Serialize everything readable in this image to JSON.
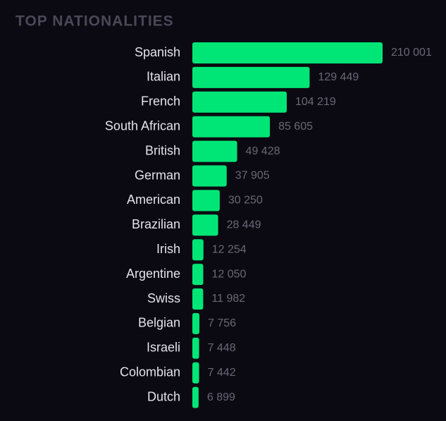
{
  "chart_data": {
    "type": "bar",
    "orientation": "horizontal",
    "title": "TOP NATIONALITIES",
    "categories": [
      "Spanish",
      "Italian",
      "French",
      "South African",
      "British",
      "German",
      "American",
      "Brazilian",
      "Irish",
      "Argentine",
      "Swiss",
      "Belgian",
      "Israeli",
      "Colombian",
      "Dutch"
    ],
    "values": [
      210001,
      129449,
      104219,
      85605,
      49428,
      37905,
      30250,
      28449,
      12254,
      12050,
      11982,
      7756,
      7448,
      7442,
      6899
    ],
    "value_labels": [
      "210 001",
      "129 449",
      "104 219",
      "85 605",
      "49 428",
      "37 905",
      "30 250",
      "28 449",
      "12 254",
      "12 050",
      "11 982",
      "7 756",
      "7 448",
      "7 442",
      "6 899"
    ],
    "color": "#00e676"
  }
}
